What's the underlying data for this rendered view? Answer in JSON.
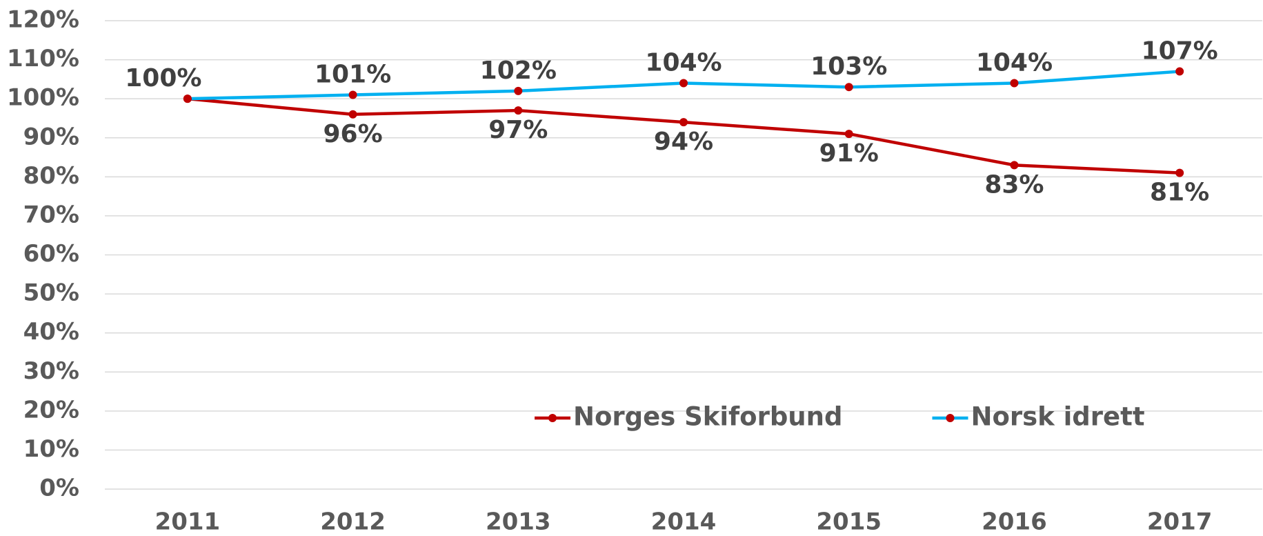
{
  "chart_data": {
    "type": "line",
    "categories": [
      "2011",
      "2012",
      "2013",
      "2014",
      "2015",
      "2016",
      "2017"
    ],
    "series": [
      {
        "name": "Norges Skiforbund",
        "color": "#c00000",
        "marker_color": "#c00000",
        "values": [
          100,
          96,
          97,
          94,
          91,
          83,
          81
        ],
        "value_labels": [
          null,
          "96%",
          "97%",
          "94%",
          "91%",
          "83%",
          "81%"
        ],
        "label_position": "below"
      },
      {
        "name": "Norsk idrett",
        "color": "#00b0f0",
        "marker_color": "#c00000",
        "values": [
          100,
          101,
          102,
          104,
          103,
          104,
          107
        ],
        "value_labels": [
          "100%",
          "101%",
          "102%",
          "104%",
          "103%",
          "104%",
          "107%"
        ],
        "label_position": "above"
      }
    ],
    "ylim": [
      0,
      120
    ],
    "yticks": [
      {
        "value": 0,
        "label": "0%"
      },
      {
        "value": 10,
        "label": "10%"
      },
      {
        "value": 20,
        "label": "20%"
      },
      {
        "value": 30,
        "label": "30%"
      },
      {
        "value": 40,
        "label": "40%"
      },
      {
        "value": 50,
        "label": "50%"
      },
      {
        "value": 60,
        "label": "60%"
      },
      {
        "value": 70,
        "label": "70%"
      },
      {
        "value": 80,
        "label": "80%"
      },
      {
        "value": 90,
        "label": "90%"
      },
      {
        "value": 100,
        "label": "100%"
      },
      {
        "value": 110,
        "label": "110%"
      },
      {
        "value": 120,
        "label": "120%"
      }
    ],
    "grid": true,
    "legend": "bottom"
  }
}
